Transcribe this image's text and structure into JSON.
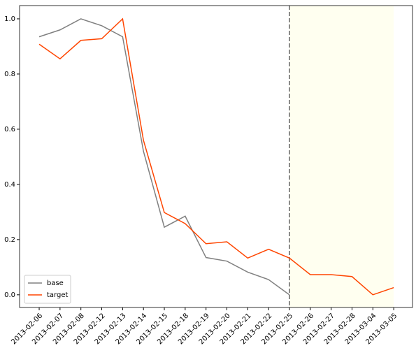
{
  "chart_data": {
    "type": "line",
    "categories": [
      "2013-02-06",
      "2013-02-07",
      "2013-02-08",
      "2013-02-12",
      "2013-02-13",
      "2013-02-14",
      "2013-02-15",
      "2013-02-18",
      "2013-02-19",
      "2013-02-20",
      "2013-02-21",
      "2013-02-22",
      "2013-02-25",
      "2013-02-26",
      "2013-02-27",
      "2013-02-28",
      "2013-03-04",
      "2013-03-05"
    ],
    "series": [
      {
        "name": "base",
        "color": "#808080",
        "values": [
          0.935,
          0.96,
          1.0,
          0.975,
          0.935,
          0.52,
          0.245,
          0.285,
          0.135,
          0.122,
          0.082,
          0.055,
          0.0,
          null,
          null,
          null,
          null,
          null
        ]
      },
      {
        "name": "target",
        "color": "#ff4500",
        "values": [
          0.908,
          0.855,
          0.922,
          0.928,
          1.0,
          0.56,
          0.298,
          0.258,
          0.185,
          0.192,
          0.133,
          0.165,
          0.133,
          0.073,
          0.073,
          0.066,
          0.0,
          0.026
        ]
      }
    ],
    "ylim": [
      -0.046,
      1.048
    ],
    "yticks": [
      {
        "value": 0,
        "label": "0.0"
      },
      0.2,
      0.4,
      0.6,
      0.8,
      {
        "value": 1,
        "label": "1.0"
      }
    ],
    "vline": "2013-02-25",
    "shade": [
      "2013-02-25",
      "2013-03-05"
    ],
    "shade_color": "#fffff0",
    "legend": "lower left"
  }
}
